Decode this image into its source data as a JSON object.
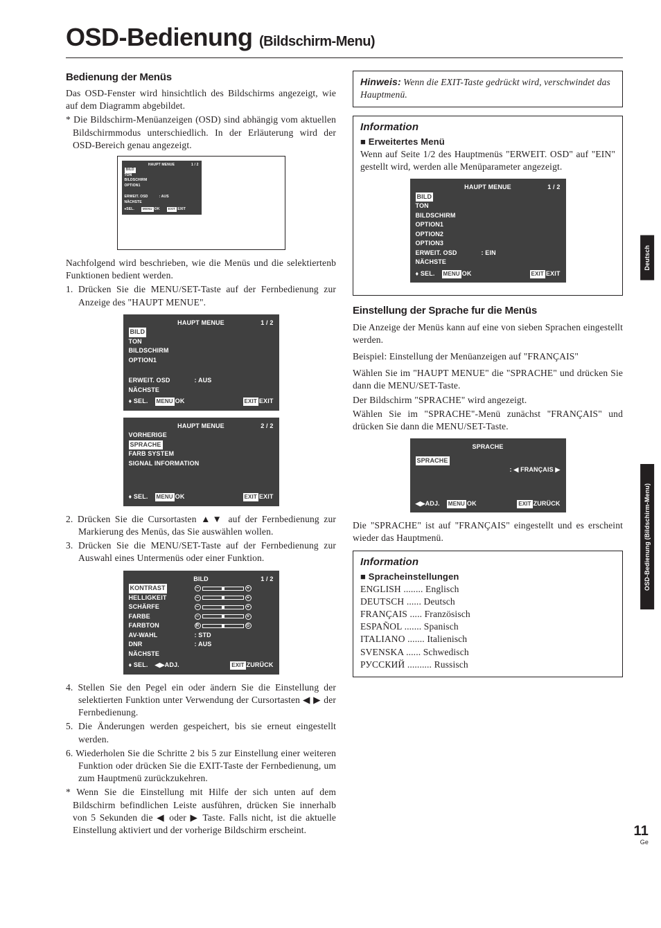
{
  "page": {
    "title_main": "OSD-Bedienung",
    "title_sub": "(Bildschirm-Menu)",
    "number": "11",
    "number_sub": "Ge",
    "sidetab1": "Deutsch",
    "sidetab2": "OSD-Bedienung (Bildschirm-Menu)"
  },
  "left": {
    "h_bedienung": "Bedienung der Menüs",
    "p1": "Das OSD-Fenster wird hinsichtlich des Bildschirms angezeigt, wie auf dem Diagramm abgebildet.",
    "note1": "* Die Bildschirm-Menüanzeigen (OSD) sind abhängig vom aktuellen Bildschirmmodus unterschiedlich. In der Erläuterung wird der OSD-Bereich genau angezeigt.",
    "p2": "Nachfolgend wird beschrieben, wie die Menüs und die selektiertenb Funktionen bedient werden.",
    "s1": "1. Drücken Sie die MENU/SET-Taste auf der Fernbedienung zur Anzeige des \"HAUPT MENUE\".",
    "s2": "2. Drücken Sie die Cursortasten ▲▼ auf der Fernbedienung zur Markierung des Menüs, das Sie auswählen wollen.",
    "s3": "3. Drücken Sie die MENU/SET-Taste auf der Fernbedienung zur Auswahl eines Untermenüs oder einer Funktion.",
    "s4": "4. Stellen Sie den Pegel ein oder ändern Sie die Einstellung der selektierten Funktion unter Verwendung der Cursortasten ◀ ▶ der Fernbedienung.",
    "s5": "5. Die Änderungen werden gespeichert, bis sie erneut eingestellt werden.",
    "s6": "6. Wiederholen Sie die Schritte 2 bis 5 zur Einstellung einer weiteren Funktion oder drücken Sie die EXIT-Taste der Fernbedienung, um zum Hauptmenü zurückzukehren.",
    "note2": "* Wenn Sie die Einstellung mit Hilfe der sich unten auf dem Bildschirm befindlichen Leiste ausführen, drücken Sie innerhalb von 5 Sekunden die ◀ oder ▶ Taste. Falls nicht, ist die aktuelle Einstellung aktiviert und der vorherige Bildschirm erscheint.",
    "osd_small": {
      "title": "HAUPT MENUE",
      "page": "1 / 2",
      "i0": "BILD",
      "i1": "TON",
      "i2": "BILDSCHIRM",
      "i3": "OPTION1",
      "r1l": "ERWEIT. OSD",
      "r1v": ":   AUS",
      "n": "   NÄCHSTE",
      "fsel": "SEL.",
      "fmenu": "MENU",
      "fok": "OK",
      "fexit": "EXIT",
      "fexit2": "EXIT"
    },
    "osd_main1": {
      "title": "HAUPT MENUE",
      "page": "1 / 2",
      "i0": "BILD",
      "i1": "TON",
      "i2": "BILDSCHIRM",
      "i3": "OPTION1",
      "r1l": "ERWEIT. OSD",
      "r1v": ":    AUS",
      "n": "   NÄCHSTE",
      "fsel": "SEL.",
      "fmenu": "MENU",
      "fok": "OK",
      "fexit": "EXIT",
      "fexit2": "EXIT"
    },
    "osd_main2": {
      "title": "HAUPT MENUE",
      "page": "2 / 2",
      "n0": "   VORHERIGE",
      "i0": "SPRACHE",
      "i1": "FARB SYSTEM",
      "i2": "SIGNAL INFORMATION",
      "fsel": "SEL.",
      "fmenu": "MENU",
      "fok": "OK",
      "fexit": "EXIT",
      "fexit2": "EXIT"
    },
    "osd_bild": {
      "title": "BILD",
      "page": "1 / 2",
      "i0": "KONTRAST",
      "i1": "HELLIGKEIT",
      "i2": "SCHÄRFE",
      "i3": "FARBE",
      "i4": "FARBTON",
      "r1l": "AV-WAHL",
      "r1v": ":   STD",
      "r2l": "DNR",
      "r2v": ":   AUS",
      "n": "   NÄCHSTE",
      "fsel": "SEL.",
      "fadj": "ADJ.",
      "fexit": "EXIT",
      "fzur": "ZURÜCK"
    }
  },
  "right": {
    "hinweis_lbl": "Hinweis:",
    "hinweis_txt": "Wenn die EXIT-Taste gedrückt wird, verschwindet das Hauptmenü.",
    "info1_h": "Information",
    "info1_sub": "Erweitertes Menü",
    "info1_p": "Wenn auf Seite 1/2 des Hauptmenüs \"ERWEIT. OSD\" auf \"EIN\" gestellt wird, werden alle Menüparameter angezeigt.",
    "osd_ext": {
      "title": "HAUPT MENUE",
      "page": "1 / 2",
      "i0": "BILD",
      "i1": "TON",
      "i2": "BILDSCHIRM",
      "i3": "OPTION1",
      "i4": "OPTION2",
      "i5": "OPTION3",
      "r1l": "ERWEIT. OSD",
      "r1v": ":    EIN",
      "n": "   NÄCHSTE",
      "fsel": "SEL.",
      "fmenu": "MENU",
      "fok": "OK",
      "fexit": "EXIT",
      "fexit2": "EXIT"
    },
    "h_sprache": "Einstellung der Sprache fur die Menüs",
    "sp_p1": "Die Anzeige der Menüs kann auf eine von sieben Sprachen eingestellt werden.",
    "sp_p2": "Beispiel: Einstellung der Menüanzeigen auf \"FRANÇAIS\"",
    "sp_p3": "Wählen Sie im \"HAUPT MENUE\" die \"SPRACHE\" und drücken Sie dann die MENU/SET-Taste.",
    "sp_p4": "Der Bildschirm \"SPRACHE\" wird angezeigt.",
    "sp_p5": "Wählen Sie im \"SPRACHE\"-Menü zunächst \"FRANÇAIS\" und drücken Sie dann die MENU/SET-Taste.",
    "osd_sprache": {
      "title": "SPRACHE",
      "i0": "SPRACHE",
      "val": ": ◀ FRANÇAIS ▶",
      "fadj": "ADJ.",
      "fmenu": "MENU",
      "fok": "OK",
      "fexit": "EXIT",
      "fzur": "ZURÜCK"
    },
    "sp_p6": "Die \"SPRACHE\" ist auf \"FRANÇAIS\" eingestellt und es erscheint wieder das Hauptmenü.",
    "info2_h": "Information",
    "info2_sub": "Spracheinstellungen",
    "langs": [
      [
        "ENGLISH ........",
        "Englisch"
      ],
      [
        "DEUTSCH ......",
        "Deutsch"
      ],
      [
        "FRANÇAIS .....",
        "Französisch"
      ],
      [
        "ESPAÑOL .......",
        "Spanisch"
      ],
      [
        "ITALIANO  .......",
        "Italienisch"
      ],
      [
        "SVENSKA ......",
        "Schwedisch"
      ],
      [
        "РУССКИЙ ..........",
        "Russisch"
      ]
    ]
  },
  "osd_colors": {
    "bg": "#404040",
    "fg": "#ffffff"
  }
}
